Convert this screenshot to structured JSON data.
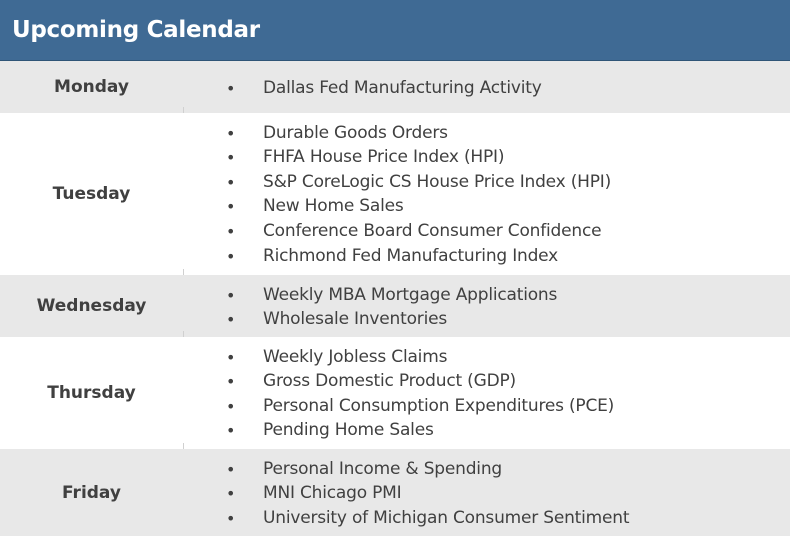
{
  "title": "Upcoming Calendar",
  "days": [
    {
      "day": "Monday",
      "events": [
        "Dallas Fed Manufacturing Activity"
      ]
    },
    {
      "day": "Tuesday",
      "events": [
        "Durable Goods Orders",
        "FHFA House Price Index (HPI)",
        "S&P CoreLogic CS House Price Index (HPI)",
        "New Home Sales",
        "Conference Board Consumer Confidence",
        "Richmond Fed Manufacturing Index"
      ]
    },
    {
      "day": "Wednesday",
      "events": [
        "Weekly MBA Mortgage Applications",
        "Wholesale Inventories"
      ]
    },
    {
      "day": "Thursday",
      "events": [
        "Weekly Jobless Claims",
        "Gross Domestic Product (GDP)",
        "Personal Consumption Expenditures (PCE)",
        "Pending Home Sales"
      ]
    },
    {
      "day": "Friday",
      "events": [
        "Personal Income & Spending",
        "MNI Chicago PMI",
        "University of Michigan Consumer Sentiment"
      ]
    }
  ]
}
